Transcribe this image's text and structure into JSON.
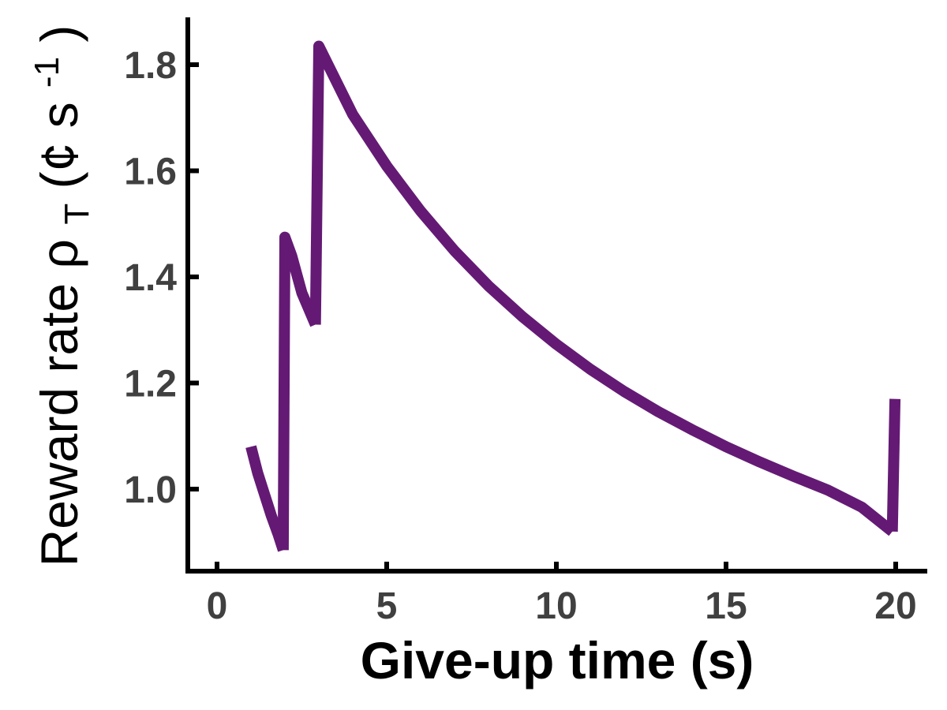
{
  "chart_data": {
    "type": "line",
    "xlabel": "Give-up time (s)",
    "ylabel": {
      "main": "Reward rate ",
      "rho": "ρ",
      "sub": "T",
      "unit_open": " (¢ s",
      "sup": "-1",
      "unit_close": ")"
    },
    "xlim": [
      0,
      20
    ],
    "ylim": [
      0.85,
      1.88
    ],
    "xticks": [
      0,
      5,
      10,
      15,
      20
    ],
    "yticks": [
      1.0,
      1.2,
      1.4,
      1.6,
      1.8
    ],
    "xtick_labels": [
      "0",
      "5",
      "10",
      "15",
      "20"
    ],
    "ytick_labels": [
      "1.0",
      "1.2",
      "1.4",
      "1.6",
      "1.8"
    ],
    "grid": false,
    "colors": {
      "line": "#641a74",
      "axis": "#000000",
      "tick_label": "#404040"
    },
    "series": [
      {
        "segments": [
          [
            [
              1.0,
              1.08
            ],
            [
              1.2,
              1.03
            ],
            [
              1.4,
              0.99
            ],
            [
              1.6,
              0.95
            ],
            [
              1.8,
              0.915
            ],
            [
              1.95,
              0.885
            ]
          ],
          [
            [
              1.95,
              0.885
            ],
            [
              2.0,
              1.475
            ],
            [
              2.2,
              1.44
            ],
            [
              2.5,
              1.37
            ],
            [
              2.9,
              1.31
            ]
          ],
          [
            [
              2.9,
              1.31
            ],
            [
              3.0,
              1.835
            ],
            [
              4,
              1.706
            ],
            [
              5,
              1.609
            ],
            [
              6,
              1.524
            ],
            [
              7,
              1.449
            ],
            [
              8,
              1.383
            ],
            [
              9,
              1.325
            ],
            [
              10,
              1.273
            ],
            [
              11,
              1.226
            ],
            [
              12,
              1.184
            ],
            [
              13,
              1.146
            ],
            [
              14,
              1.112
            ],
            [
              15,
              1.08
            ],
            [
              16,
              1.051
            ],
            [
              17,
              1.024
            ],
            [
              18,
              0.998
            ],
            [
              19,
              0.966
            ],
            [
              19.9,
              0.92
            ]
          ],
          [
            [
              19.9,
              0.92
            ],
            [
              19.98,
              1.17
            ]
          ]
        ]
      }
    ]
  }
}
